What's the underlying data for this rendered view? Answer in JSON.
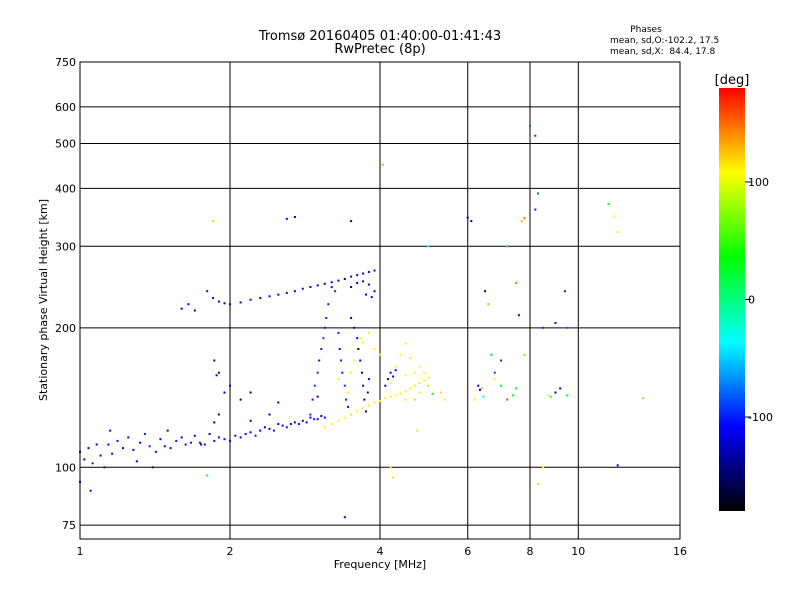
{
  "chart_data": {
    "type": "scatter",
    "title": "Tromsø 20160405 01:40:00-01:41:43",
    "subtitle": "RwPretec (8p)",
    "xlabel": "Frequency [MHz]",
    "ylabel": "Stationary phase Virtual Height [km]",
    "x_scale": "log",
    "y_scale": "log",
    "xlim": [
      1,
      16
    ],
    "ylim": [
      70,
      750
    ],
    "x_ticks": [
      1,
      2,
      4,
      6,
      8,
      10,
      16
    ],
    "y_ticks": [
      75,
      100,
      200,
      300,
      400,
      500,
      600,
      750
    ],
    "grid": true,
    "phases_box": {
      "title": "Phases",
      "line_o": "mean, sd,O:-102.2, 17.5",
      "line_x": "mean, sd,X:  84.4, 17.8"
    },
    "colorbar": {
      "unit": "[deg]",
      "range": [
        -180,
        180
      ],
      "ticks": [
        100,
        0,
        -100
      ],
      "colors": [
        "#ff0000",
        "#ffff00",
        "#00ff00",
        "#00ffff",
        "#0000ff",
        "#000000"
      ]
    },
    "series": [
      {
        "values": [
          [
            1.0,
            108,
            -110
          ],
          [
            1.02,
            104,
            -115
          ],
          [
            1.04,
            110,
            -108
          ],
          [
            1.06,
            102,
            -100
          ],
          [
            1.08,
            112,
            -112
          ],
          [
            1.1,
            106,
            -118
          ],
          [
            1.12,
            100,
            -105
          ],
          [
            1.14,
            112,
            -110
          ],
          [
            1.16,
            107,
            -120
          ],
          [
            1.19,
            114,
            -104
          ],
          [
            1.22,
            110,
            -112
          ],
          [
            1.25,
            116,
            -116
          ],
          [
            1.28,
            109,
            -108
          ],
          [
            1.32,
            113,
            -110
          ],
          [
            1.35,
            118,
            -95
          ],
          [
            1.38,
            111,
            -100
          ],
          [
            1.42,
            108,
            -112
          ],
          [
            1.45,
            115,
            -106
          ],
          [
            1.48,
            111,
            -115
          ],
          [
            1.52,
            110,
            -110
          ],
          [
            1.56,
            114,
            -104
          ],
          [
            1.6,
            116,
            -112
          ],
          [
            1.63,
            112,
            -108
          ],
          [
            1.67,
            113,
            -100
          ],
          [
            1.7,
            117,
            -112
          ],
          [
            1.74,
            113,
            -115
          ],
          [
            1.78,
            112,
            -106
          ],
          [
            1.82,
            118,
            -110
          ],
          [
            1.86,
            114,
            -112
          ],
          [
            1.9,
            116,
            -104
          ],
          [
            1.95,
            115,
            -110
          ],
          [
            2.0,
            114,
            -108
          ],
          [
            2.05,
            117,
            -115
          ],
          [
            2.1,
            116,
            -110
          ],
          [
            2.15,
            118,
            -104
          ],
          [
            2.2,
            119,
            -112
          ],
          [
            2.25,
            117,
            -100
          ],
          [
            2.3,
            120,
            -110
          ],
          [
            2.35,
            122,
            -106
          ],
          [
            2.4,
            121,
            -112
          ],
          [
            2.45,
            120,
            -104
          ],
          [
            2.5,
            124,
            -108
          ],
          [
            2.55,
            123,
            -112
          ],
          [
            2.6,
            122,
            -100
          ],
          [
            2.65,
            124,
            -110
          ],
          [
            2.7,
            125,
            -106
          ],
          [
            2.75,
            124,
            -112
          ],
          [
            2.8,
            126,
            -108
          ],
          [
            2.85,
            125,
            -104
          ],
          [
            2.9,
            128,
            -110
          ],
          [
            2.95,
            127,
            -100
          ],
          [
            3.0,
            127,
            -106
          ],
          [
            3.05,
            129,
            -112
          ],
          [
            3.1,
            128,
            -104
          ],
          [
            1.15,
            120,
            -125
          ],
          [
            1.3,
            103,
            -120
          ],
          [
            1.5,
            120,
            -130
          ],
          [
            1.75,
            112,
            -125
          ],
          [
            2.2,
            126,
            -120
          ]
        ]
      },
      {
        "values": [
          [
            3.1,
            122,
            110
          ],
          [
            3.2,
            124,
            100
          ],
          [
            3.3,
            126,
            105
          ],
          [
            3.4,
            128,
            108
          ],
          [
            3.5,
            130,
            96
          ],
          [
            3.6,
            132,
            112
          ],
          [
            3.7,
            134,
            104
          ],
          [
            3.8,
            136,
            100
          ],
          [
            3.9,
            138,
            106
          ],
          [
            4.0,
            139,
            110
          ],
          [
            4.1,
            141,
            98
          ],
          [
            4.2,
            142,
            104
          ],
          [
            4.3,
            143,
            108
          ],
          [
            4.4,
            144,
            100
          ],
          [
            4.5,
            146,
            112
          ],
          [
            4.6,
            148,
            106
          ],
          [
            4.7,
            150,
            100
          ],
          [
            4.8,
            152,
            104
          ],
          [
            4.9,
            154,
            110
          ],
          [
            5.0,
            156,
            102
          ],
          [
            3.5,
            160,
            112
          ],
          [
            3.55,
            170,
            104
          ],
          [
            3.6,
            180,
            108
          ],
          [
            3.65,
            190,
            100
          ],
          [
            3.7,
            186,
            110
          ],
          [
            4.3,
            165,
            104
          ],
          [
            4.4,
            175,
            108
          ],
          [
            4.5,
            185,
            100
          ],
          [
            4.6,
            172,
            110
          ],
          [
            4.7,
            160,
            104
          ],
          [
            3.9,
            180,
            106
          ],
          [
            4.0,
            175,
            110
          ],
          [
            3.8,
            195,
            100
          ],
          [
            3.3,
            155,
            104
          ],
          [
            3.4,
            150,
            110
          ],
          [
            3.45,
            145,
            106
          ],
          [
            4.2,
            152,
            104
          ],
          [
            4.5,
            158,
            108
          ],
          [
            4.8,
            165,
            100
          ],
          [
            4.9,
            160,
            106
          ]
        ]
      },
      {
        "values": [
          [
            1.6,
            220,
            -120
          ],
          [
            1.65,
            225,
            -115
          ],
          [
            1.7,
            218,
            -125
          ],
          [
            1.8,
            240,
            -110
          ],
          [
            1.85,
            232,
            -118
          ],
          [
            1.9,
            228,
            -112
          ],
          [
            1.95,
            226,
            -125
          ],
          [
            2.0,
            225,
            -120
          ],
          [
            2.1,
            227,
            -115
          ],
          [
            2.2,
            230,
            -110
          ],
          [
            2.3,
            232,
            -118
          ],
          [
            2.4,
            234,
            -112
          ],
          [
            2.5,
            236,
            -124
          ],
          [
            2.6,
            238,
            -116
          ],
          [
            2.7,
            240,
            -120
          ],
          [
            2.8,
            243,
            -110
          ],
          [
            2.9,
            245,
            -118
          ],
          [
            3.0,
            247,
            -112
          ],
          [
            3.1,
            249,
            -120
          ],
          [
            3.2,
            251,
            -116
          ],
          [
            3.3,
            253,
            -110
          ],
          [
            3.4,
            255,
            -118
          ],
          [
            3.5,
            258,
            -112
          ],
          [
            3.6,
            260,
            -120
          ],
          [
            3.7,
            262,
            -116
          ],
          [
            3.8,
            264,
            -110
          ],
          [
            3.9,
            266,
            -114
          ],
          [
            3.5,
            245,
            -125
          ],
          [
            3.6,
            250,
            -118
          ],
          [
            3.7,
            252,
            -112
          ],
          [
            3.8,
            248,
            -120
          ],
          [
            3.9,
            240,
            -116
          ],
          [
            3.75,
            236,
            -110
          ],
          [
            3.85,
            233,
            -118
          ]
        ]
      },
      {
        "values": [
          [
            2.9,
            130,
            -95
          ],
          [
            2.93,
            140,
            -100
          ],
          [
            2.96,
            150,
            -92
          ],
          [
            3.0,
            160,
            -96
          ],
          [
            3.02,
            170,
            -105
          ],
          [
            3.05,
            180,
            -98
          ],
          [
            3.08,
            190,
            -92
          ],
          [
            3.1,
            200,
            -102
          ],
          [
            3.12,
            210,
            -96
          ],
          [
            3.15,
            225,
            -100
          ],
          [
            3.2,
            245,
            -98
          ],
          [
            3.25,
            240,
            -95
          ],
          [
            3.3,
            195,
            -100
          ],
          [
            3.32,
            180,
            -105
          ],
          [
            3.34,
            170,
            -98
          ],
          [
            3.36,
            160,
            -100
          ],
          [
            3.4,
            150,
            -94
          ],
          [
            3.42,
            140,
            -98
          ],
          [
            3.45,
            135,
            -102
          ],
          [
            3.5,
            210,
            -120
          ],
          [
            3.55,
            200,
            -125
          ],
          [
            3.6,
            190,
            -118
          ],
          [
            3.62,
            180,
            -130
          ],
          [
            3.65,
            170,
            -120
          ],
          [
            3.68,
            160,
            -125
          ],
          [
            3.7,
            150,
            -118
          ],
          [
            3.72,
            140,
            -122
          ],
          [
            3.75,
            132,
            -128
          ],
          [
            3.78,
            145,
            -120
          ],
          [
            3.8,
            155,
            -115
          ],
          [
            4.1,
            150,
            -118
          ],
          [
            4.15,
            155,
            -120
          ],
          [
            4.2,
            160,
            -115
          ],
          [
            4.25,
            157,
            -122
          ],
          [
            4.3,
            162,
            -118
          ]
        ]
      },
      {
        "values": [
          [
            1.9,
            160,
            -140
          ],
          [
            1.88,
            158,
            -110
          ],
          [
            1.86,
            170,
            -120
          ],
          [
            1.9,
            130,
            -130
          ],
          [
            1.95,
            145,
            -140
          ],
          [
            2.0,
            150,
            -125
          ],
          [
            2.1,
            140,
            -150
          ],
          [
            2.2,
            145,
            -145
          ],
          [
            1.86,
            125,
            -150
          ],
          [
            1.4,
            100,
            -120
          ],
          [
            3.4,
            78,
            -120
          ],
          [
            3.0,
            142,
            -140
          ],
          [
            2.4,
            130,
            -130
          ],
          [
            2.5,
            138,
            -125
          ],
          [
            1.0,
            93,
            -110
          ],
          [
            1.05,
            89,
            -110
          ],
          [
            3.5,
            340,
            -120
          ],
          [
            2.6,
            344,
            -120
          ],
          [
            2.7,
            347,
            -115
          ],
          [
            5.0,
            300,
            -30
          ],
          [
            6.0,
            346,
            -130
          ],
          [
            6.1,
            340,
            -135
          ],
          [
            6.5,
            240,
            -130
          ],
          [
            6.6,
            225,
            20
          ],
          [
            6.7,
            175,
            -100
          ],
          [
            6.8,
            160,
            -90
          ],
          [
            7.0,
            170,
            -95
          ],
          [
            7.2,
            300,
            40
          ],
          [
            7.5,
            250,
            50
          ],
          [
            7.6,
            213,
            -120
          ],
          [
            7.8,
            175,
            70
          ],
          [
            8.0,
            545,
            -80
          ],
          [
            8.2,
            520,
            -90
          ],
          [
            8.3,
            390,
            -80
          ],
          [
            8.5,
            200,
            -95
          ],
          [
            9.0,
            205,
            -110
          ],
          [
            9.4,
            240,
            -100
          ],
          [
            9.5,
            200,
            -85
          ],
          [
            12.0,
            101,
            -120
          ],
          [
            6.3,
            150,
            -115
          ],
          [
            6.35,
            147,
            -125
          ]
        ]
      },
      {
        "values": [
          [
            1.85,
            340,
            120
          ],
          [
            1.8,
            96,
            20
          ],
          [
            4.05,
            450,
            60
          ],
          [
            4.2,
            100,
            110
          ],
          [
            4.25,
            95,
            90
          ],
          [
            4.5,
            140,
            95
          ],
          [
            4.75,
            120,
            90
          ],
          [
            4.7,
            140,
            85
          ],
          [
            4.8,
            145,
            100
          ],
          [
            5.0,
            150,
            80
          ],
          [
            5.1,
            144,
            40
          ],
          [
            5.3,
            145,
            120
          ],
          [
            5.4,
            140,
            100
          ],
          [
            6.2,
            140,
            110
          ],
          [
            6.4,
            148,
            130
          ],
          [
            6.45,
            142,
            -30
          ],
          [
            6.6,
            225,
            130
          ],
          [
            6.7,
            175,
            10
          ],
          [
            6.8,
            155,
            110
          ],
          [
            7.0,
            150,
            20
          ],
          [
            7.2,
            140,
            160
          ],
          [
            7.4,
            143,
            40
          ],
          [
            7.5,
            148,
            30
          ],
          [
            7.7,
            340,
            130
          ],
          [
            7.8,
            345,
            150
          ],
          [
            8.2,
            360,
            -100
          ],
          [
            8.3,
            92,
            90
          ],
          [
            8.5,
            100,
            110
          ],
          [
            8.7,
            143,
            110
          ],
          [
            8.8,
            142,
            10
          ],
          [
            9.0,
            145,
            -140
          ],
          [
            9.2,
            148,
            -120
          ],
          [
            9.5,
            143,
            20
          ],
          [
            11.5,
            370,
            30
          ],
          [
            11.8,
            348,
            110
          ],
          [
            12.0,
            322,
            100
          ],
          [
            13.5,
            141,
            130
          ]
        ]
      }
    ]
  }
}
